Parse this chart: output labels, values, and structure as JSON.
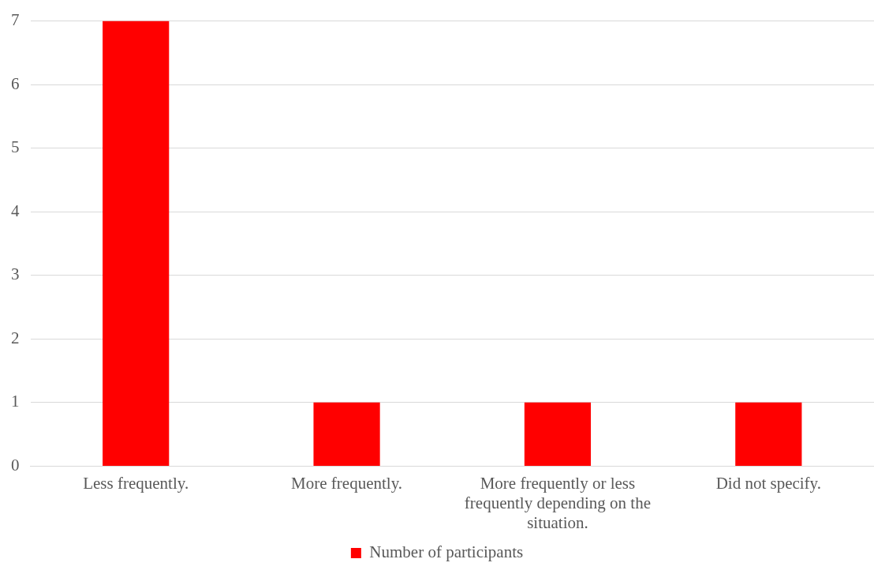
{
  "chart_data": {
    "type": "bar",
    "categories": [
      "Less frequently.",
      "More frequently.",
      "More frequently or less frequently depending on the situation.",
      "Did not specify."
    ],
    "series": [
      {
        "name": "Number of participants",
        "color": "#ff0000",
        "values": [
          7,
          1,
          1,
          1
        ]
      }
    ],
    "ylim": [
      0,
      7
    ],
    "yticks": [
      0,
      1,
      2,
      3,
      4,
      5,
      6,
      7
    ],
    "grid": "y",
    "legend": "bottom"
  }
}
